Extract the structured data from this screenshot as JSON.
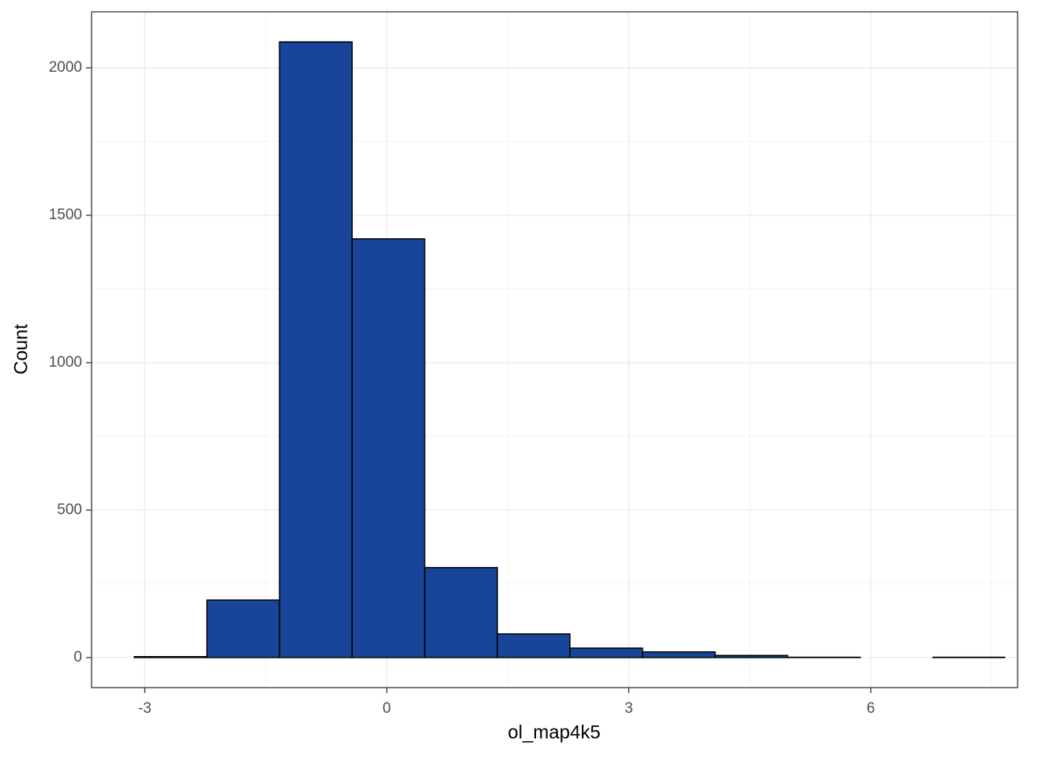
{
  "chart_data": {
    "type": "histogram",
    "x_label": "ol_map4k5",
    "y_label": "Count",
    "bins": [
      -3.13,
      -2.23,
      -1.33,
      -0.43,
      0.47,
      1.37,
      2.27,
      3.17,
      4.07,
      4.97,
      5.87,
      6.77,
      7.66
    ],
    "values": [
      3,
      195,
      2088,
      1420,
      305,
      80,
      32,
      19,
      7,
      1,
      0,
      1
    ],
    "color": "#18449a",
    "edge_color": "#000000",
    "xlim": [
      -3.66,
      7.82
    ],
    "ylim": [
      -102,
      2190
    ],
    "xticks": [
      -3,
      0,
      3,
      6
    ],
    "yticks": [
      0,
      500,
      1000,
      1500,
      2000
    ],
    "xminor": [
      -1.5,
      1.5,
      4.5,
      7.5
    ],
    "yminor": [
      250,
      750,
      1250,
      1750
    ],
    "grid": true
  }
}
